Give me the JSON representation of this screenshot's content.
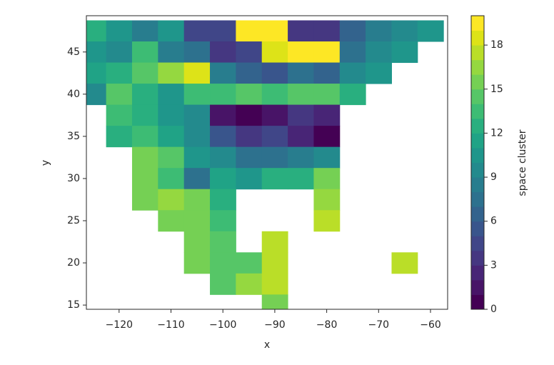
{
  "chart_data": {
    "type": "raster",
    "xlabel": "x",
    "ylabel": "y",
    "colorbar_label": "space cluster",
    "xlim": [
      -126.3,
      -56.7
    ],
    "ylim": [
      14.5,
      49.3
    ],
    "zlim": [
      0,
      20
    ],
    "xticks": [
      {
        "value": -120,
        "label": "−120"
      },
      {
        "value": -110,
        "label": "−110"
      },
      {
        "value": -100,
        "label": "−100"
      },
      {
        "value": -90,
        "label": "−90"
      },
      {
        "value": -80,
        "label": "−80"
      },
      {
        "value": -70,
        "label": "−70"
      },
      {
        "value": -60,
        "label": "−60"
      }
    ],
    "yticks": [
      15,
      20,
      25,
      30,
      35,
      40,
      45
    ],
    "zticks": [
      0,
      3,
      6,
      9,
      12,
      15,
      18
    ],
    "colors": [
      "#440154",
      "#481467",
      "#482576",
      "#453781",
      "#404688",
      "#39558c",
      "#33638d",
      "#2d718e",
      "#287d8e",
      "#238a8d",
      "#1f968b",
      "#20a386",
      "#29af7f",
      "#3dbc74",
      "#56c667",
      "#75d054",
      "#95d840",
      "#bade28",
      "#dde318",
      "#fde725"
    ],
    "x": [
      -125,
      -120,
      -115,
      -110,
      -105,
      -100,
      -95,
      -90,
      -85,
      -80,
      -75,
      -70,
      -65,
      -60
    ],
    "y": [
      47.5,
      45,
      42.5,
      40,
      37.5,
      35,
      32.5,
      30,
      27.5,
      25,
      22.5,
      20,
      17.5,
      15
    ],
    "z": [
      [
        12,
        10,
        8,
        10,
        4,
        4,
        19,
        19,
        3,
        3,
        6,
        8,
        9,
        10
      ],
      [
        10,
        9,
        13,
        8,
        7,
        3,
        4,
        18,
        19,
        19,
        7,
        9,
        10,
        null
      ],
      [
        11,
        12,
        14,
        16,
        18,
        8,
        6,
        5,
        7,
        6,
        9,
        10,
        null,
        null
      ],
      [
        9,
        14,
        12,
        10,
        13,
        13,
        14,
        13,
        14,
        14,
        12,
        null,
        null,
        null
      ],
      [
        null,
        13,
        12,
        10,
        9,
        1,
        0,
        1,
        3,
        2,
        null,
        null,
        null,
        null
      ],
      [
        null,
        12,
        13,
        11,
        9,
        5,
        3,
        4,
        2,
        0,
        null,
        null,
        null,
        null
      ],
      [
        null,
        null,
        15,
        14,
        10,
        9,
        7,
        7,
        8,
        9,
        null,
        null,
        null,
        null
      ],
      [
        null,
        null,
        15,
        13,
        7,
        11,
        10,
        12,
        12,
        15,
        null,
        null,
        null,
        null
      ],
      [
        null,
        null,
        15,
        16,
        15,
        12,
        null,
        null,
        null,
        16,
        null,
        null,
        null,
        null
      ],
      [
        null,
        null,
        null,
        15,
        15,
        13,
        null,
        null,
        null,
        17,
        null,
        null,
        null,
        null
      ],
      [
        null,
        null,
        null,
        null,
        15,
        14,
        null,
        17,
        null,
        null,
        null,
        null,
        null,
        null
      ],
      [
        null,
        null,
        null,
        null,
        15,
        14,
        14,
        17,
        null,
        null,
        null,
        null,
        17,
        null
      ],
      [
        null,
        null,
        null,
        null,
        null,
        14,
        16,
        17,
        null,
        null,
        null,
        null,
        null,
        null
      ],
      [
        null,
        null,
        null,
        null,
        null,
        null,
        null,
        15,
        null,
        null,
        null,
        null,
        null,
        null
      ]
    ]
  }
}
